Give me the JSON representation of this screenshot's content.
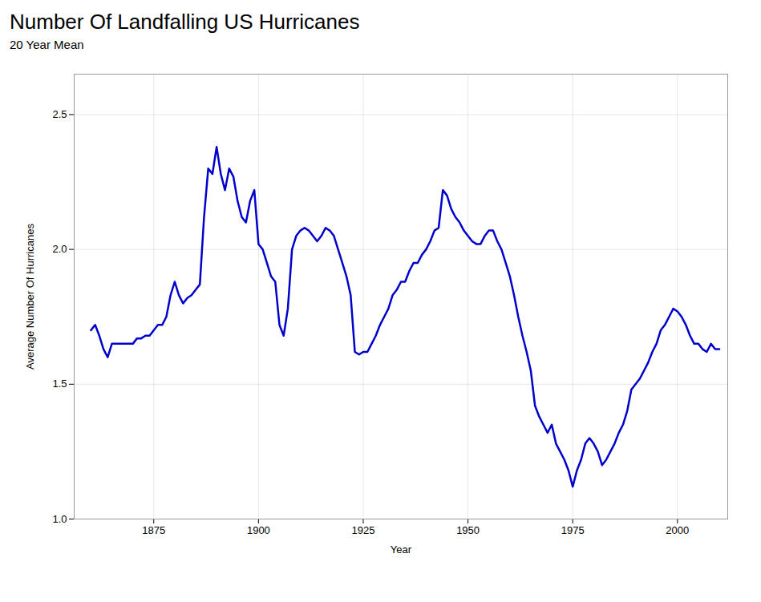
{
  "chart_data": {
    "type": "line",
    "title": "Number Of Landfalling US Hurricanes",
    "subtitle": "20 Year Mean",
    "xlabel": "Year",
    "ylabel": "Average Number Of Hurricanes",
    "x": [
      1860,
      1861,
      1862,
      1863,
      1864,
      1865,
      1866,
      1867,
      1868,
      1869,
      1870,
      1871,
      1872,
      1873,
      1874,
      1875,
      1876,
      1877,
      1878,
      1879,
      1880,
      1881,
      1882,
      1883,
      1884,
      1885,
      1886,
      1887,
      1888,
      1889,
      1890,
      1891,
      1892,
      1893,
      1894,
      1895,
      1896,
      1897,
      1898,
      1899,
      1900,
      1901,
      1902,
      1903,
      1904,
      1905,
      1906,
      1907,
      1908,
      1909,
      1910,
      1911,
      1912,
      1913,
      1914,
      1915,
      1916,
      1917,
      1918,
      1919,
      1920,
      1921,
      1922,
      1923,
      1924,
      1925,
      1926,
      1927,
      1928,
      1929,
      1930,
      1931,
      1932,
      1933,
      1934,
      1935,
      1936,
      1937,
      1938,
      1939,
      1940,
      1941,
      1942,
      1943,
      1944,
      1945,
      1946,
      1947,
      1948,
      1949,
      1950,
      1951,
      1952,
      1953,
      1954,
      1955,
      1956,
      1957,
      1958,
      1959,
      1960,
      1961,
      1962,
      1963,
      1964,
      1965,
      1966,
      1967,
      1968,
      1969,
      1970,
      1971,
      1972,
      1973,
      1974,
      1975,
      1976,
      1977,
      1978,
      1979,
      1980,
      1981,
      1982,
      1983,
      1984,
      1985,
      1986,
      1987,
      1988,
      1989,
      1990,
      1991,
      1992,
      1993,
      1994,
      1995,
      1996,
      1997,
      1998,
      1999,
      2000,
      2001,
      2002,
      2003,
      2004,
      2005,
      2006,
      2007,
      2008,
      2009,
      2010
    ],
    "values": [
      1.7,
      1.72,
      1.68,
      1.63,
      1.6,
      1.65,
      1.65,
      1.65,
      1.65,
      1.65,
      1.65,
      1.67,
      1.67,
      1.68,
      1.68,
      1.7,
      1.72,
      1.72,
      1.75,
      1.83,
      1.88,
      1.83,
      1.8,
      1.82,
      1.83,
      1.85,
      1.87,
      2.12,
      2.3,
      2.28,
      2.38,
      2.28,
      2.22,
      2.3,
      2.27,
      2.18,
      2.12,
      2.1,
      2.18,
      2.22,
      2.02,
      2.0,
      1.95,
      1.9,
      1.88,
      1.72,
      1.68,
      1.78,
      2.0,
      2.05,
      2.07,
      2.08,
      2.07,
      2.05,
      2.03,
      2.05,
      2.08,
      2.07,
      2.05,
      2.0,
      1.95,
      1.9,
      1.83,
      1.62,
      1.61,
      1.62,
      1.62,
      1.65,
      1.68,
      1.72,
      1.75,
      1.78,
      1.83,
      1.85,
      1.88,
      1.88,
      1.92,
      1.95,
      1.95,
      1.98,
      2.0,
      2.03,
      2.07,
      2.08,
      2.22,
      2.2,
      2.15,
      2.12,
      2.1,
      2.07,
      2.05,
      2.03,
      2.02,
      2.02,
      2.05,
      2.07,
      2.07,
      2.03,
      2.0,
      1.95,
      1.9,
      1.83,
      1.75,
      1.68,
      1.62,
      1.55,
      1.42,
      1.38,
      1.35,
      1.32,
      1.35,
      1.28,
      1.25,
      1.22,
      1.18,
      1.12,
      1.18,
      1.22,
      1.28,
      1.3,
      1.28,
      1.25,
      1.2,
      1.22,
      1.25,
      1.28,
      1.32,
      1.35,
      1.4,
      1.48,
      1.5,
      1.52,
      1.55,
      1.58,
      1.62,
      1.65,
      1.7,
      1.72,
      1.75,
      1.78,
      1.77,
      1.75,
      1.72,
      1.68,
      1.65,
      1.65,
      1.63,
      1.62,
      1.65,
      1.63,
      1.63
    ],
    "color": "#0000CC",
    "xlim": [
      1856,
      2012
    ],
    "ylim": [
      1.0,
      2.65
    ],
    "xticks": [
      1875,
      1900,
      1925,
      1950,
      1975,
      2000
    ],
    "yticks": [
      {
        "value": 1,
        "label": "1.0"
      },
      1.5,
      {
        "value": 2,
        "label": "2.0"
      },
      2.5
    ],
    "grid": true
  }
}
